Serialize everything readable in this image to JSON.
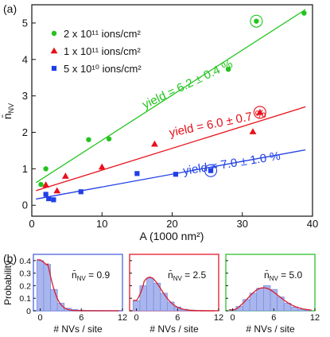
{
  "panel_a_label": "(a)",
  "panel_b_label": "(b)",
  "chart_data": [
    {
      "type": "scatter",
      "xlabel": "A (1000 nm²)",
      "ylabel": "n̄NV",
      "xlim": [
        0,
        40
      ],
      "ylim": [
        -0.3,
        5.5
      ],
      "xticks": [
        0,
        10,
        20,
        30,
        40
      ],
      "yticks": [
        0,
        1,
        2,
        3,
        4,
        5
      ],
      "legend_placement": "top-left",
      "series": [
        {
          "name": "2 x 10¹¹ ions/cm²",
          "marker": "circle",
          "color": "#22c41d",
          "x": [
            1.3,
            2.0,
            8.1,
            11.0,
            28.0,
            32.0,
            38.8
          ],
          "y": [
            0.57,
            1.0,
            1.8,
            1.82,
            3.73,
            5.05,
            5.27
          ],
          "circled": [
            32.0,
            5.05
          ],
          "fit": {
            "x": [
              0.6,
              39.0
            ],
            "y": [
              0.62,
              5.37
            ]
          },
          "annotation": "yield = 6.2 ± 0.4 %"
        },
        {
          "name": "1 x 10¹¹ ions/cm²",
          "marker": "triangle",
          "color": "#e8101a",
          "x": [
            2.0,
            3.6,
            4.8,
            10.0,
            17.5,
            31.5,
            32.5
          ],
          "y": [
            0.56,
            0.4,
            0.8,
            1.05,
            1.68,
            2.02,
            2.55
          ],
          "circled": [
            32.5,
            2.55
          ],
          "fit": {
            "x": [
              0.6,
              39.0
            ],
            "y": [
              0.4,
              2.7
            ]
          },
          "annotation": "yield = 6.0 ± 0.7 %"
        },
        {
          "name": "5 x 10¹⁰ ions/cm²",
          "marker": "square",
          "color": "#1f3fe6",
          "x": [
            2.0,
            2.4,
            3.1,
            7.0,
            15.0,
            20.5,
            25.5
          ],
          "y": [
            0.3,
            0.18,
            0.15,
            0.37,
            0.87,
            0.85,
            0.95
          ],
          "circled": [
            25.5,
            0.95
          ],
          "fit": {
            "x": [
              0.6,
              39.0
            ],
            "y": [
              0.17,
              1.52
            ]
          },
          "annotation": "yield = 7.0 ± 1.0 %"
        }
      ]
    },
    {
      "type": "bar",
      "ylabel": "Probability",
      "xlabel": "# NVs / site",
      "xlim": [
        -1,
        12
      ],
      "ylim": [
        0,
        0.45
      ],
      "xticks": [
        0,
        6,
        12
      ],
      "yticks": [
        0,
        0.1,
        0.2,
        0.3,
        0.4
      ],
      "ytick_labels": [
        "0",
        "0.1",
        "0.2",
        "0.3",
        "0.4"
      ],
      "panels": [
        {
          "label": "n̄NV = 0.9",
          "label_main": "n̄",
          "label_sub": "NV",
          "label_value": " = 0.9",
          "frame_color": "#5a6fe0",
          "x": [
            0,
            1,
            2,
            3,
            4,
            5,
            6,
            7,
            8,
            9,
            10,
            11
          ],
          "values": [
            0.4,
            0.37,
            0.17,
            0.06,
            0.02,
            0.01,
            0.005,
            0.003,
            0.002,
            0.002,
            0.001,
            0.001
          ],
          "fit_mean": 0.9
        },
        {
          "label": "n̄NV = 2.5",
          "label_main": "n̄",
          "label_sub": "NV",
          "label_value": " = 2.5",
          "frame_color": "#e8283a",
          "x": [
            0,
            1,
            2,
            3,
            4,
            5,
            6,
            7,
            8,
            9,
            10,
            11
          ],
          "values": [
            0.08,
            0.2,
            0.26,
            0.22,
            0.14,
            0.07,
            0.03,
            0.012,
            0.006,
            0.003,
            0.002,
            0.001
          ],
          "fit_mean": 2.5
        },
        {
          "label": "n̄NV = 5.0",
          "label_main": "n̄",
          "label_sub": "NV",
          "label_value": " = 5.0",
          "frame_color": "#3cc43c",
          "x": [
            0,
            1,
            2,
            3,
            4,
            5,
            6,
            7,
            8,
            9,
            10,
            11
          ],
          "values": [
            0.01,
            0.035,
            0.09,
            0.14,
            0.18,
            0.2,
            0.17,
            0.11,
            0.06,
            0.03,
            0.012,
            0.005
          ],
          "fit_mean": 5.0
        }
      ]
    }
  ]
}
